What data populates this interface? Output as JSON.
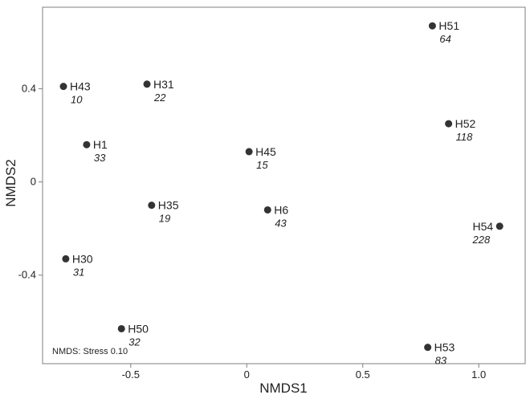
{
  "chart_data": {
    "type": "scatter",
    "xlabel": "NMDS1",
    "ylabel": "NMDS2",
    "xlim": [
      -0.88,
      1.2
    ],
    "ylim": [
      -0.78,
      0.75
    ],
    "grid": false,
    "x_ticks": [
      -0.5,
      0,
      0.5,
      1.0
    ],
    "x_tick_labels": [
      "-0.5",
      "0",
      "0.5",
      "1.0"
    ],
    "y_ticks": [
      0.4,
      0,
      -0.4
    ],
    "y_tick_labels": [
      "0.4",
      "0",
      "-0.4"
    ],
    "annotation": "NMDS: Stress 0.10",
    "point_color": "#333333",
    "points": [
      {
        "name": "H51",
        "value": "64",
        "x": 0.8,
        "y": 0.67
      },
      {
        "name": "H43",
        "value": "10",
        "x": -0.79,
        "y": 0.41
      },
      {
        "name": "H31",
        "value": "22",
        "x": -0.43,
        "y": 0.42
      },
      {
        "name": "H52",
        "value": "118",
        "x": 0.87,
        "y": 0.25
      },
      {
        "name": "H1",
        "value": "33",
        "x": -0.69,
        "y": 0.16
      },
      {
        "name": "H45",
        "value": "15",
        "x": 0.01,
        "y": 0.13
      },
      {
        "name": "H35",
        "value": "19",
        "x": -0.41,
        "y": -0.1
      },
      {
        "name": "H6",
        "value": "43",
        "x": 0.09,
        "y": -0.12
      },
      {
        "name": "H54",
        "value": "228",
        "x": 1.09,
        "y": -0.19
      },
      {
        "name": "H30",
        "value": "31",
        "x": -0.78,
        "y": -0.33
      },
      {
        "name": "H50",
        "value": "32",
        "x": -0.54,
        "y": -0.63
      },
      {
        "name": "H53",
        "value": "83",
        "x": 0.78,
        "y": -0.71
      }
    ]
  }
}
